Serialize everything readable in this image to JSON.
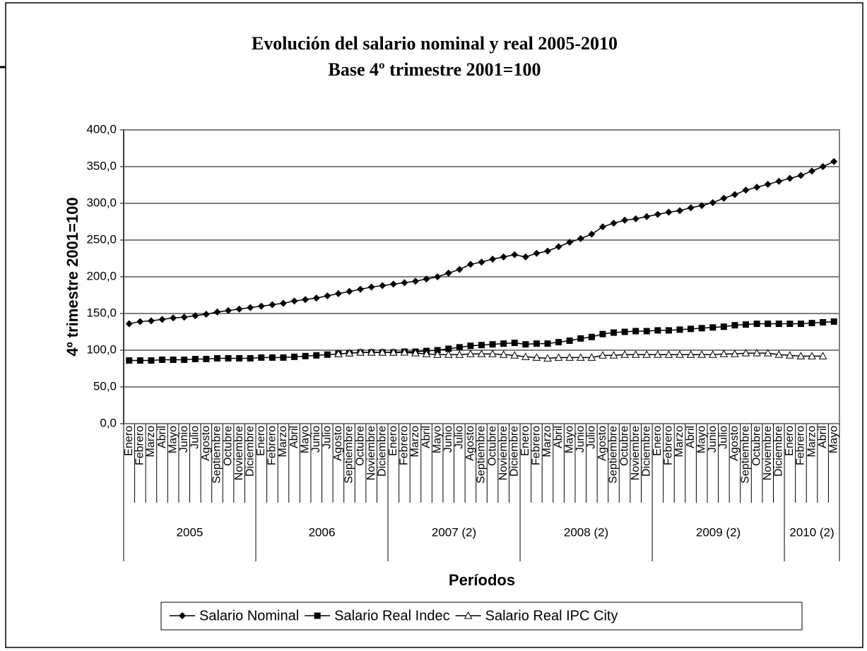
{
  "chart_data": {
    "type": "line",
    "title": "Evolución del salario nominal y real 2005-2010",
    "subtitle": "Base 4º trimestre 2001=100",
    "y_label": "4º trimestre 2001=100",
    "x_label": "Períodos",
    "groups": [
      {
        "name": "2005",
        "categories": [
          "Enero",
          "Febrero",
          "Marzo",
          "Abril",
          "Mayo",
          "Junio",
          "Julio",
          "Agosto",
          "Septiembre",
          "Octubre",
          "Noviembre",
          "Diciembre"
        ]
      },
      {
        "name": "2006",
        "categories": [
          "Enero",
          "Febrero",
          "Marzo",
          "Abril",
          "Mayo",
          "Junio",
          "Julio",
          "Agosto",
          "Septiembre",
          "Octubre",
          "Noviembre",
          "Diciembre"
        ]
      },
      {
        "name": "2007 (2)",
        "categories": [
          "Enero",
          "Febrero",
          "Marzo",
          "Abril",
          "Mayo",
          "Junio",
          "Julio",
          "Agosto",
          "Septiembre",
          "Octubre",
          "Noviembre",
          "Diciembre"
        ]
      },
      {
        "name": "2008 (2)",
        "categories": [
          "Enero",
          "Febrero",
          "Marzo",
          "Abril",
          "Mayo",
          "Junio",
          "Julio",
          "Agosto",
          "Septiembre",
          "Octubre",
          "Noviembre",
          "Diciembre"
        ]
      },
      {
        "name": "2009 (2)",
        "categories": [
          "Enero",
          "Febrero",
          "Marzo",
          "Abril",
          "Mayo",
          "Junio",
          "Julio",
          "Agosto",
          "Septiembre",
          "Octubre",
          "Noviembre",
          "Diciembre"
        ]
      },
      {
        "name": "2010 (2)",
        "categories": [
          "Enero",
          "Febrero",
          "Marzo",
          "Abril",
          "Mayo"
        ]
      }
    ],
    "series": [
      {
        "name": "Salario Nominal",
        "color": "#000000",
        "marker": "diamond",
        "values": [
          136,
          139,
          140,
          142,
          144,
          145,
          147,
          149,
          152,
          154,
          156,
          158,
          160,
          162,
          164,
          167,
          169,
          171,
          174,
          177,
          180,
          183,
          186,
          188,
          190,
          192,
          194,
          197,
          200,
          205,
          210,
          217,
          220,
          224,
          227,
          230,
          227,
          232,
          235,
          241,
          247,
          252,
          258,
          268,
          273,
          277,
          279,
          282,
          285,
          288,
          290,
          294,
          297,
          301,
          307,
          312,
          318,
          322,
          326,
          330,
          334,
          338,
          344,
          350,
          357
        ]
      },
      {
        "name": "Salario Real Indec",
        "color": "#000000",
        "marker": "square",
        "values": [
          86,
          86,
          86,
          87,
          87,
          87,
          88,
          88,
          89,
          89,
          89,
          89,
          90,
          90,
          90,
          91,
          92,
          93,
          94,
          95,
          96,
          97,
          97,
          97,
          97,
          98,
          98,
          99,
          100,
          102,
          104,
          106,
          107,
          108,
          109,
          110,
          108,
          109,
          109,
          111,
          113,
          116,
          118,
          122,
          124,
          125,
          126,
          126,
          127,
          127,
          128,
          129,
          130,
          131,
          132,
          134,
          135,
          136,
          136,
          136,
          136,
          136,
          137,
          138,
          139
        ]
      },
      {
        "name": "Salario Real IPC City",
        "color": "#000000",
        "marker": "triangle",
        "values": [
          null,
          null,
          null,
          null,
          null,
          null,
          null,
          null,
          null,
          null,
          null,
          null,
          null,
          null,
          null,
          null,
          null,
          null,
          null,
          95,
          96,
          97,
          97,
          97,
          97,
          97,
          96,
          95,
          94,
          94,
          94,
          95,
          95,
          95,
          94,
          93,
          91,
          90,
          89,
          90,
          90,
          90,
          90,
          93,
          93,
          94,
          94,
          94,
          94,
          94,
          94,
          94,
          94,
          94,
          95,
          95,
          96,
          96,
          96,
          94,
          93,
          92,
          92,
          92,
          null
        ]
      }
    ],
    "ylim": [
      0,
      400
    ],
    "yticks": [
      {
        "value": 0,
        "label": "0,0"
      },
      {
        "value": 50,
        "label": "50,0"
      },
      {
        "value": 100,
        "label": "100,0"
      },
      {
        "value": 150,
        "label": "150,0"
      },
      {
        "value": 200,
        "label": "200,0"
      },
      {
        "value": 250,
        "label": "250,0"
      },
      {
        "value": 300,
        "label": "300,0"
      },
      {
        "value": 350,
        "label": "350,0"
      },
      {
        "value": 400,
        "label": "400,0"
      }
    ],
    "grid": true,
    "legend": "bottom"
  }
}
